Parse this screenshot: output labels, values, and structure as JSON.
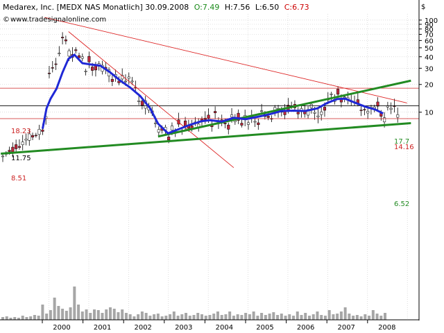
{
  "header": {
    "title": "Medarex, Inc. [MEDX NAS  Monatlich] 30.09.2008",
    "open": "O:7.49",
    "high": "H:7.56",
    "low": "L:6.50",
    "close": "C:6.73",
    "source": "www.tradesignalonline.com",
    "currency": "$"
  },
  "colors": {
    "up_candle": "#ffffff",
    "down_candle": "#c0283c",
    "moving_average": "#1f28d6",
    "trendline_green": "#228b22",
    "trendline_red": "#dd2222",
    "horizontal_red": "#cc2222",
    "horizontal_black": "#000000",
    "volume": "#a6a6a6",
    "grid": "#c8c8c8",
    "open_text": "#1a8a1a",
    "close_text": "#cc0000"
  },
  "chart_data": {
    "type": "candlestick",
    "yscale": "log",
    "ylim": [
      4,
      140
    ],
    "y_ticks": [
      100,
      90,
      80,
      70,
      60,
      50,
      40,
      30,
      20,
      10
    ],
    "x_labels": [
      "2000",
      "2001",
      "2002",
      "2003",
      "2004",
      "2005",
      "2006",
      "2007",
      "2008"
    ],
    "horizontal_levels": [
      {
        "label": "18.23",
        "value": 18.23,
        "color": "red"
      },
      {
        "label": "11.75",
        "value": 11.75,
        "color": "black"
      },
      {
        "label": "8.51",
        "value": 8.51,
        "color": "red"
      }
    ],
    "annotations": [
      {
        "label": "17.7",
        "value": 17.7,
        "color": "green"
      },
      {
        "label": "14.16",
        "value": 14.16,
        "color": "red"
      },
      {
        "label": "6.52",
        "value": 6.52,
        "color": "green"
      }
    ],
    "trendlines": [
      {
        "color": "red",
        "from": [
          1999.85,
          107
        ],
        "to": [
          2008.95,
          12.6
        ]
      },
      {
        "color": "red",
        "from": [
          2000.45,
          75
        ],
        "to": [
          2004.6,
          2.5
        ]
      },
      {
        "color": "green",
        "from": [
          1998.75,
          3.55
        ],
        "to": [
          2009.05,
          7.6
        ]
      },
      {
        "color": "green",
        "from": [
          2002.7,
          5.45
        ],
        "to": [
          2009.05,
          22
        ]
      }
    ],
    "moving_average": [
      [
        1999.8,
        6.6
      ],
      [
        1999.9,
        11.0
      ],
      [
        2000.0,
        14.0
      ],
      [
        2000.15,
        18.0
      ],
      [
        2000.3,
        27.0
      ],
      [
        2000.45,
        38.0
      ],
      [
        2000.6,
        42.0
      ],
      [
        2000.8,
        34.0
      ],
      [
        2001.0,
        33.0
      ],
      [
        2001.25,
        32.0
      ],
      [
        2001.5,
        27.0
      ],
      [
        2001.75,
        22.0
      ],
      [
        2002.0,
        18.5
      ],
      [
        2002.25,
        15.0
      ],
      [
        2002.5,
        11.0
      ],
      [
        2002.7,
        7.5
      ],
      [
        2002.95,
        5.9
      ],
      [
        2003.2,
        6.5
      ],
      [
        2003.5,
        7.3
      ],
      [
        2003.8,
        8.0
      ],
      [
        2004.0,
        8.2
      ],
      [
        2004.3,
        7.9
      ],
      [
        2004.6,
        8.7
      ],
      [
        2004.9,
        8.4
      ],
      [
        2005.2,
        8.9
      ],
      [
        2005.5,
        9.5
      ],
      [
        2005.8,
        10.3
      ],
      [
        2006.1,
        10.4
      ],
      [
        2006.4,
        10.3
      ],
      [
        2006.7,
        11.0
      ],
      [
        2006.95,
        12.6
      ],
      [
        2007.2,
        13.9
      ],
      [
        2007.4,
        14.0
      ],
      [
        2007.7,
        12.4
      ],
      [
        2007.9,
        11.5
      ],
      [
        2008.15,
        10.7
      ],
      [
        2008.35,
        9.7
      ]
    ],
    "volume": [
      [
        1998.8,
        4
      ],
      [
        1998.9,
        5
      ],
      [
        1999.0,
        3
      ],
      [
        1999.1,
        4
      ],
      [
        1999.2,
        3
      ],
      [
        1999.3,
        6
      ],
      [
        1999.4,
        4
      ],
      [
        1999.5,
        5
      ],
      [
        1999.6,
        7
      ],
      [
        1999.7,
        6
      ],
      [
        1999.8,
        22
      ],
      [
        1999.9,
        9
      ],
      [
        2000.0,
        14
      ],
      [
        2000.1,
        32
      ],
      [
        2000.2,
        20
      ],
      [
        2000.3,
        16
      ],
      [
        2000.4,
        13
      ],
      [
        2000.5,
        18
      ],
      [
        2000.6,
        48
      ],
      [
        2000.7,
        22
      ],
      [
        2000.8,
        12
      ],
      [
        2000.9,
        15
      ],
      [
        2001.0,
        10
      ],
      [
        2001.1,
        15
      ],
      [
        2001.2,
        14
      ],
      [
        2001.3,
        10
      ],
      [
        2001.4,
        15
      ],
      [
        2001.5,
        18
      ],
      [
        2001.6,
        16
      ],
      [
        2001.7,
        11
      ],
      [
        2001.8,
        15
      ],
      [
        2001.9,
        10
      ],
      [
        2002.0,
        8
      ],
      [
        2002.1,
        5
      ],
      [
        2002.2,
        8
      ],
      [
        2002.3,
        12
      ],
      [
        2002.4,
        10
      ],
      [
        2002.5,
        6
      ],
      [
        2002.6,
        8
      ],
      [
        2002.7,
        9
      ],
      [
        2002.8,
        5
      ],
      [
        2002.9,
        6
      ],
      [
        2003.0,
        8
      ],
      [
        2003.1,
        12
      ],
      [
        2003.2,
        6
      ],
      [
        2003.3,
        8
      ],
      [
        2003.4,
        10
      ],
      [
        2003.5,
        6
      ],
      [
        2003.6,
        7
      ],
      [
        2003.7,
        10
      ],
      [
        2003.8,
        8
      ],
      [
        2003.9,
        6
      ],
      [
        2004.0,
        7
      ],
      [
        2004.1,
        9
      ],
      [
        2004.2,
        12
      ],
      [
        2004.3,
        7
      ],
      [
        2004.4,
        8
      ],
      [
        2004.5,
        12
      ],
      [
        2004.6,
        6
      ],
      [
        2004.7,
        8
      ],
      [
        2004.8,
        7
      ],
      [
        2004.9,
        10
      ],
      [
        2005.0,
        8
      ],
      [
        2005.1,
        12
      ],
      [
        2005.2,
        6
      ],
      [
        2005.3,
        10
      ],
      [
        2005.4,
        7
      ],
      [
        2005.5,
        9
      ],
      [
        2005.6,
        11
      ],
      [
        2005.7,
        7
      ],
      [
        2005.8,
        9
      ],
      [
        2005.9,
        6
      ],
      [
        2006.0,
        8
      ],
      [
        2006.1,
        6
      ],
      [
        2006.2,
        12
      ],
      [
        2006.3,
        7
      ],
      [
        2006.4,
        10
      ],
      [
        2006.5,
        6
      ],
      [
        2006.6,
        8
      ],
      [
        2006.7,
        12
      ],
      [
        2006.8,
        7
      ],
      [
        2006.9,
        6
      ],
      [
        2007.0,
        14
      ],
      [
        2007.1,
        8
      ],
      [
        2007.2,
        9
      ],
      [
        2007.3,
        12
      ],
      [
        2007.4,
        18
      ],
      [
        2007.5,
        9
      ],
      [
        2007.6,
        6
      ],
      [
        2007.7,
        7
      ],
      [
        2007.8,
        5
      ],
      [
        2007.9,
        8
      ],
      [
        2008.0,
        6
      ],
      [
        2008.1,
        14
      ],
      [
        2008.2,
        9
      ],
      [
        2008.3,
        6
      ],
      [
        2008.4,
        10
      ]
    ]
  }
}
